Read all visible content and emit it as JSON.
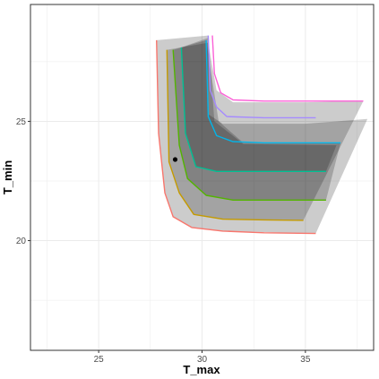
{
  "chart_data": {
    "type": "area",
    "xlabel": "T_max",
    "ylabel": "T_min",
    "xlim": [
      21.7,
      38.3
    ],
    "ylim": [
      15.4,
      29.9
    ],
    "x_ticks": [
      25,
      30,
      35
    ],
    "y_ticks": [
      20,
      25
    ],
    "x_tick_labels": [
      "25",
      "30",
      "35"
    ],
    "y_tick_labels": [
      "20",
      "25"
    ],
    "grid": true,
    "legend": "none",
    "bands": [
      {
        "fill": "#000000",
        "opacity": 0.2,
        "points": [
          [
            27.8,
            28.4
          ],
          [
            27.9,
            24.5
          ],
          [
            28.2,
            22.0
          ],
          [
            28.6,
            21.0
          ],
          [
            29.5,
            20.55
          ],
          [
            31.0,
            20.4
          ],
          [
            35.5,
            20.3
          ],
          [
            38.0,
            25.1
          ],
          [
            35.0,
            24.9
          ],
          [
            31.0,
            24.9
          ],
          [
            30.3,
            25.3
          ],
          [
            30.3,
            28.6
          ]
        ]
      },
      {
        "fill": "#000000",
        "opacity": 0.2,
        "points": [
          [
            28.3,
            28.0
          ],
          [
            28.4,
            23.3
          ],
          [
            28.9,
            22.0
          ],
          [
            29.6,
            21.1
          ],
          [
            31.0,
            20.9
          ],
          [
            34.9,
            20.85
          ],
          [
            37.8,
            25.85
          ],
          [
            35.0,
            25.8
          ],
          [
            31.5,
            25.8
          ],
          [
            30.7,
            26.3
          ],
          [
            30.3,
            28.3
          ]
        ]
      },
      {
        "fill": "#000000",
        "opacity": 0.2,
        "points": [
          [
            28.6,
            28.0
          ],
          [
            28.9,
            24.0
          ],
          [
            29.3,
            22.6
          ],
          [
            30.2,
            21.9
          ],
          [
            31.5,
            21.7
          ],
          [
            36.0,
            21.7
          ],
          [
            36.7,
            24.1
          ],
          [
            32.0,
            24.1
          ],
          [
            30.8,
            25.0
          ],
          [
            30.2,
            28.4
          ]
        ]
      },
      {
        "fill": "#000000",
        "opacity": 0.2,
        "points": [
          [
            29.0,
            28.1
          ],
          [
            29.2,
            24.5
          ],
          [
            29.7,
            23.1
          ],
          [
            30.7,
            22.9
          ],
          [
            33.0,
            22.9
          ],
          [
            36.0,
            22.9
          ],
          [
            36.5,
            24.0
          ],
          [
            32.0,
            24.05
          ],
          [
            30.6,
            25.0
          ],
          [
            30.3,
            28.5
          ]
        ]
      }
    ],
    "series": [
      {
        "color": "#F8766D",
        "points": [
          [
            27.8,
            28.4
          ],
          [
            27.9,
            24.5
          ],
          [
            28.2,
            22.0
          ],
          [
            28.6,
            21.0
          ],
          [
            29.5,
            20.55
          ],
          [
            31.0,
            20.4
          ],
          [
            33.0,
            20.33
          ],
          [
            35.5,
            20.3
          ]
        ]
      },
      {
        "color": "#C49A00",
        "points": [
          [
            28.3,
            28.0
          ],
          [
            28.4,
            23.3
          ],
          [
            28.9,
            22.0
          ],
          [
            29.6,
            21.1
          ],
          [
            31.0,
            20.9
          ],
          [
            33.0,
            20.87
          ],
          [
            34.9,
            20.85
          ]
        ]
      },
      {
        "color": "#53B400",
        "points": [
          [
            28.6,
            28.0
          ],
          [
            28.9,
            24.0
          ],
          [
            29.3,
            22.6
          ],
          [
            30.2,
            21.9
          ],
          [
            31.5,
            21.7
          ],
          [
            36.0,
            21.7
          ]
        ]
      },
      {
        "color": "#00C094",
        "points": [
          [
            29.0,
            28.1
          ],
          [
            29.2,
            24.5
          ],
          [
            29.7,
            23.1
          ],
          [
            30.7,
            22.9
          ],
          [
            33.0,
            22.9
          ],
          [
            36.0,
            22.9
          ]
        ]
      },
      {
        "color": "#00B6EB",
        "points": [
          [
            30.2,
            28.4
          ],
          [
            30.3,
            25.2
          ],
          [
            30.7,
            24.4
          ],
          [
            31.5,
            24.15
          ],
          [
            33.0,
            24.1
          ],
          [
            36.7,
            24.1
          ]
        ]
      },
      {
        "color": "#A58AFF",
        "points": [
          [
            30.3,
            28.6
          ],
          [
            30.4,
            26.3
          ],
          [
            30.7,
            25.6
          ],
          [
            31.2,
            25.2
          ],
          [
            33.0,
            25.15
          ],
          [
            35.5,
            25.15
          ]
        ]
      },
      {
        "color": "#FB61D7",
        "points": [
          [
            30.5,
            28.6
          ],
          [
            30.6,
            27.0
          ],
          [
            30.9,
            26.2
          ],
          [
            31.5,
            25.9
          ],
          [
            33.0,
            25.85
          ],
          [
            37.8,
            25.85
          ]
        ]
      }
    ],
    "points": [
      {
        "x": 28.7,
        "y": 23.4,
        "color": "#000000"
      }
    ]
  }
}
